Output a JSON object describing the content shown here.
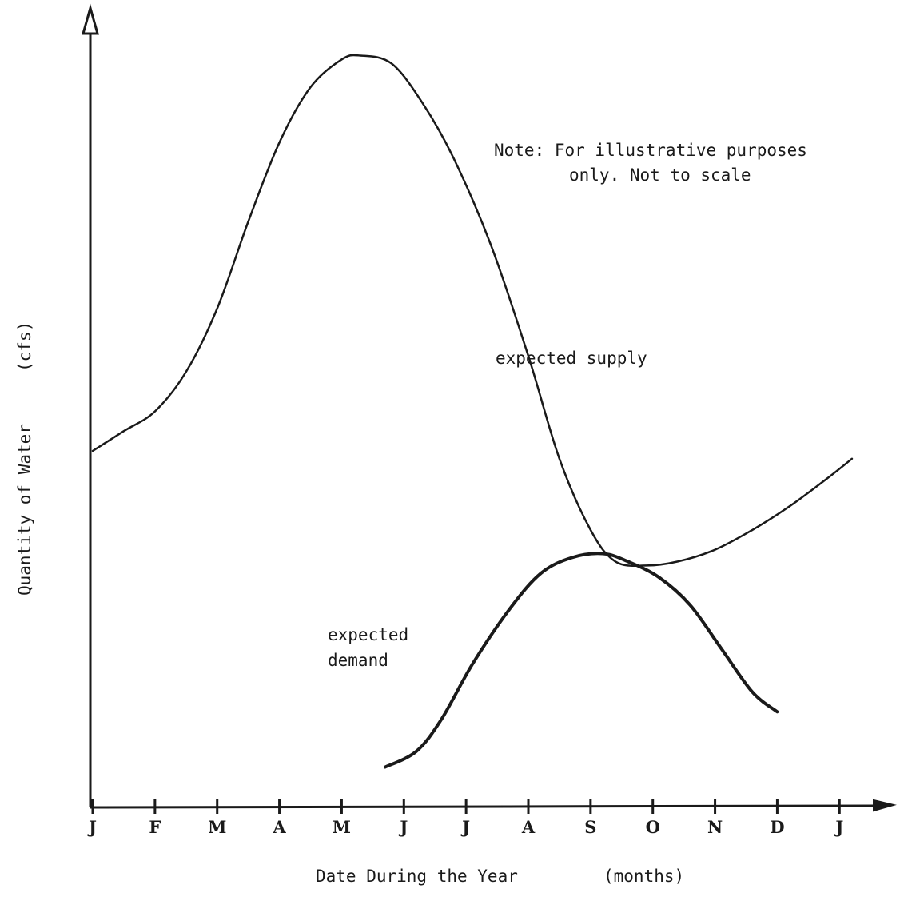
{
  "chart_data": {
    "type": "line",
    "title": "",
    "xlabel": "Date During the Year",
    "xlabel_unit": "(months)",
    "ylabel": "Quantity of Water",
    "ylabel_unit": "(cfs)",
    "categories": [
      "J",
      "F",
      "M",
      "A",
      "M",
      "J",
      "J",
      "A",
      "S",
      "O",
      "N",
      "D",
      "J"
    ],
    "xlim": [
      0,
      12.6
    ],
    "ylim": [
      0,
      100
    ],
    "grid": false,
    "note_line1": "Note: For illustrative purposes",
    "note_line2": "only.  Not to scale",
    "series": [
      {
        "name": "expected  supply",
        "color": "#1a1a1a",
        "points": [
          [
            0,
            45
          ],
          [
            0.5,
            47.5
          ],
          [
            1,
            50
          ],
          [
            1.5,
            55
          ],
          [
            2,
            63
          ],
          [
            2.5,
            74
          ],
          [
            3,
            84
          ],
          [
            3.5,
            91
          ],
          [
            4,
            94.5
          ],
          [
            4.3,
            95
          ],
          [
            4.8,
            94
          ],
          [
            5.3,
            89
          ],
          [
            5.8,
            82
          ],
          [
            6.4,
            71
          ],
          [
            7,
            57
          ],
          [
            7.5,
            44
          ],
          [
            8,
            35
          ],
          [
            8.4,
            31
          ],
          [
            8.9,
            30.5
          ],
          [
            9.4,
            31
          ],
          [
            10,
            32.5
          ],
          [
            10.6,
            35
          ],
          [
            11.2,
            38
          ],
          [
            11.8,
            41.5
          ],
          [
            12.2,
            44
          ]
        ]
      },
      {
        "name": "expected\ndemand",
        "color": "#1a1a1a",
        "points": [
          [
            4.7,
            5
          ],
          [
            5.2,
            7
          ],
          [
            5.6,
            11
          ],
          [
            6.1,
            18
          ],
          [
            6.7,
            25
          ],
          [
            7.2,
            29.5
          ],
          [
            7.7,
            31.5
          ],
          [
            8.2,
            32
          ],
          [
            8.6,
            31
          ],
          [
            9.1,
            29
          ],
          [
            9.6,
            25.5
          ],
          [
            10.1,
            20
          ],
          [
            10.6,
            14.5
          ],
          [
            11.0,
            12
          ]
        ]
      }
    ]
  }
}
